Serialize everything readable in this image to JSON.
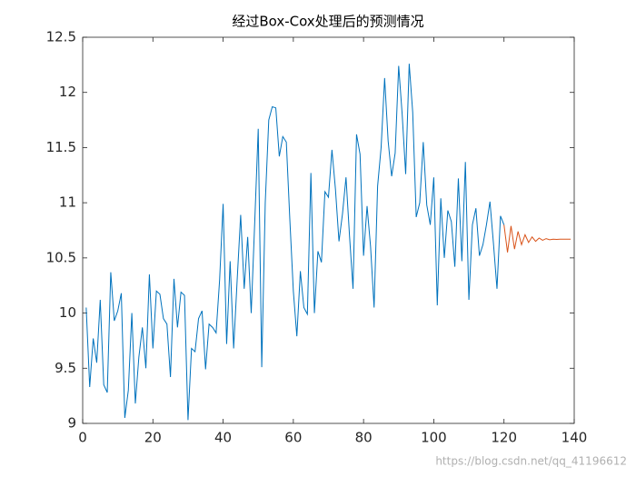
{
  "chart_data": {
    "type": "line",
    "title": "经过Box-Cox处理后的预测情况",
    "watermark": "https://blog.csdn.net/qq_41196612",
    "xlim": [
      0,
      140
    ],
    "xticks": [
      0,
      20,
      40,
      60,
      80,
      100,
      120,
      140
    ],
    "ylim": [
      9,
      12.5
    ],
    "yticks": [
      9,
      9.5,
      10,
      10.5,
      11,
      11.5,
      12,
      12.5
    ],
    "grid": false,
    "box": true,
    "series": [
      {
        "color": "#0072bd",
        "x": [
          1,
          2,
          3,
          4,
          5,
          6,
          7,
          8,
          9,
          10,
          11,
          12,
          13,
          14,
          15,
          16,
          17,
          18,
          19,
          20,
          21,
          22,
          23,
          24,
          25,
          26,
          27,
          28,
          29,
          30,
          31,
          32,
          33,
          34,
          35,
          36,
          37,
          38,
          39,
          40,
          41,
          42,
          43,
          44,
          45,
          46,
          47,
          48,
          49,
          50,
          51,
          52,
          53,
          54,
          55,
          56,
          57,
          58,
          59,
          60,
          61,
          62,
          63,
          64,
          65,
          66,
          67,
          68,
          69,
          70,
          71,
          72,
          73,
          74,
          75,
          76,
          77,
          78,
          79,
          80,
          81,
          82,
          83,
          84,
          85,
          86,
          87,
          88,
          89,
          90,
          91,
          92,
          93,
          94,
          95,
          96,
          97,
          98,
          99,
          100,
          101,
          102,
          103,
          104,
          105,
          106,
          107,
          108,
          109,
          110,
          111,
          112,
          113,
          114,
          115,
          116,
          117,
          118,
          119,
          120
        ],
        "values": [
          10.05,
          9.33,
          9.77,
          9.55,
          10.12,
          9.35,
          9.28,
          10.37,
          9.93,
          10.02,
          10.18,
          9.05,
          9.3,
          10.0,
          9.18,
          9.6,
          9.87,
          9.5,
          10.35,
          9.68,
          10.2,
          10.17,
          9.95,
          9.9,
          9.42,
          10.31,
          9.87,
          10.19,
          10.16,
          9.03,
          9.68,
          9.65,
          9.95,
          10.02,
          9.49,
          9.9,
          9.87,
          9.82,
          10.3,
          10.99,
          9.72,
          10.47,
          9.68,
          10.3,
          10.89,
          10.22,
          10.69,
          10.0,
          10.82,
          11.67,
          9.51,
          11.0,
          11.75,
          11.87,
          11.86,
          11.42,
          11.6,
          11.55,
          10.85,
          10.2,
          9.79,
          10.38,
          10.05,
          9.99,
          11.27,
          10.0,
          10.56,
          10.46,
          11.1,
          11.05,
          11.48,
          11.12,
          10.65,
          10.9,
          11.23,
          10.7,
          10.22,
          11.62,
          11.44,
          10.52,
          10.97,
          10.6,
          10.05,
          11.15,
          11.5,
          12.13,
          11.56,
          11.24,
          11.45,
          12.24,
          11.8,
          11.26,
          12.26,
          11.82,
          10.87,
          11.0,
          11.55,
          10.98,
          10.8,
          11.23,
          10.07,
          11.04,
          10.5,
          10.93,
          10.83,
          10.42,
          11.22,
          10.47,
          11.37,
          10.12,
          10.8,
          10.95,
          10.52,
          10.62,
          10.8,
          11.01,
          10.63,
          10.22,
          10.88,
          10.8
        ]
      },
      {
        "color": "#d95319",
        "x": [
          120,
          121,
          122,
          123,
          124,
          125,
          126,
          127,
          128,
          129,
          130,
          131,
          132,
          133,
          134,
          135,
          136,
          137,
          138,
          139
        ],
        "values": [
          10.8,
          10.55,
          10.79,
          10.58,
          10.74,
          10.62,
          10.71,
          10.64,
          10.69,
          10.65,
          10.68,
          10.66,
          10.675,
          10.665,
          10.67,
          10.668,
          10.67,
          10.67,
          10.67,
          10.67
        ]
      }
    ]
  }
}
